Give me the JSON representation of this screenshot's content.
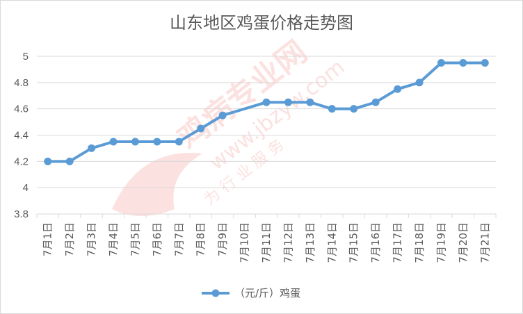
{
  "chart_data": {
    "type": "line",
    "title": "山东地区鸡蛋价格走势图",
    "categories": [
      "7月1日",
      "7月2日",
      "7月3日",
      "7月4日",
      "7月5日",
      "7月6日",
      "7月7日",
      "7月8日",
      "7月9日",
      "7月10日",
      "7月11日",
      "7月12日",
      "7月13日",
      "7月14日",
      "7月15日",
      "7月16日",
      "7月17日",
      "7月18日",
      "7月19日",
      "7月20日",
      "7月21日"
    ],
    "series": [
      {
        "name": "（元/斤）鸡蛋",
        "values": [
          4.2,
          4.2,
          4.3,
          4.35,
          4.35,
          4.35,
          4.35,
          4.45,
          4.55,
          null,
          4.65,
          4.65,
          4.65,
          4.6,
          4.6,
          4.65,
          4.75,
          4.8,
          4.95,
          4.95,
          4.95
        ]
      }
    ],
    "ylim": [
      3.8,
      5.0
    ],
    "yticks": [
      "3.8",
      "4",
      "4.2",
      "4.4",
      "4.6",
      "4.8",
      "5"
    ],
    "xlabel": "",
    "ylabel": "",
    "grid": true,
    "legend": "bottom",
    "colors": {
      "line": "#5b9bd5",
      "grid": "#d9d9d9",
      "text": "#595959"
    }
  },
  "watermark": {
    "brand": "鸡病专业网",
    "url": "www.jbzyw.com",
    "slogan": "为 行 业 服 务"
  }
}
